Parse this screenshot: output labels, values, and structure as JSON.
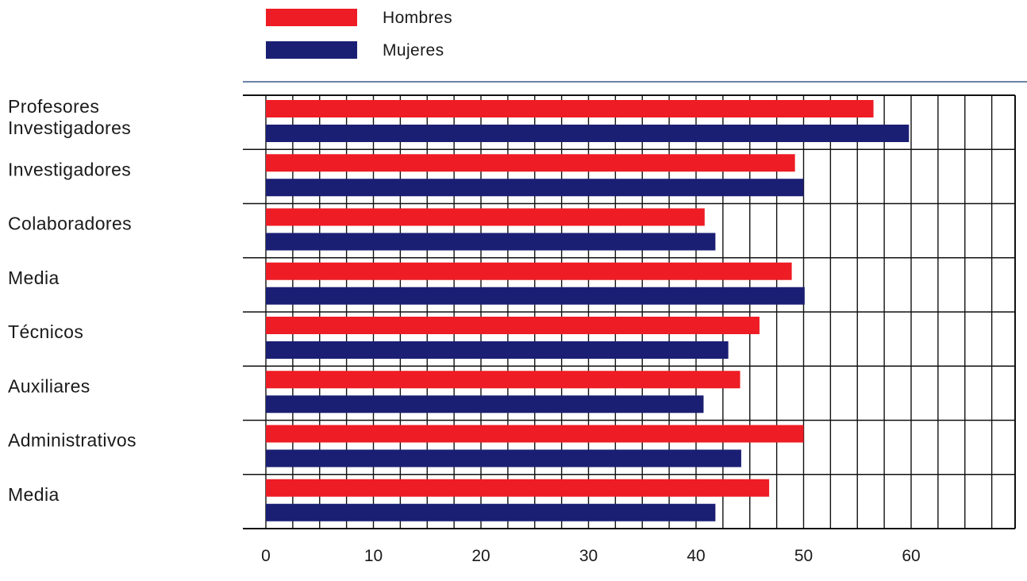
{
  "chart_data": {
    "type": "bar",
    "orientation": "horizontal",
    "categories": [
      [
        "Profesores",
        "Investigadores"
      ],
      [
        "Investigadores"
      ],
      [
        "Colaboradores"
      ],
      [
        "Media"
      ],
      [
        "Técnicos"
      ],
      [
        "Auxiliares"
      ],
      [
        "Administrativos"
      ],
      [
        "Media"
      ]
    ],
    "series": [
      {
        "name": "Hombres",
        "color": "#ee1c24",
        "values": [
          56.5,
          49.2,
          40.8,
          48.9,
          45.9,
          44.1,
          50.0,
          46.8
        ]
      },
      {
        "name": "Mujeres",
        "color": "#1b1f73",
        "values": [
          59.8,
          50.0,
          41.8,
          50.1,
          43.0,
          40.7,
          44.2,
          41.8
        ]
      }
    ],
    "xlim": [
      0,
      70
    ],
    "xticks": [
      0,
      10,
      20,
      30,
      40,
      50,
      60
    ],
    "grid_step": 2.5,
    "grid": true,
    "legend_position": "top"
  }
}
